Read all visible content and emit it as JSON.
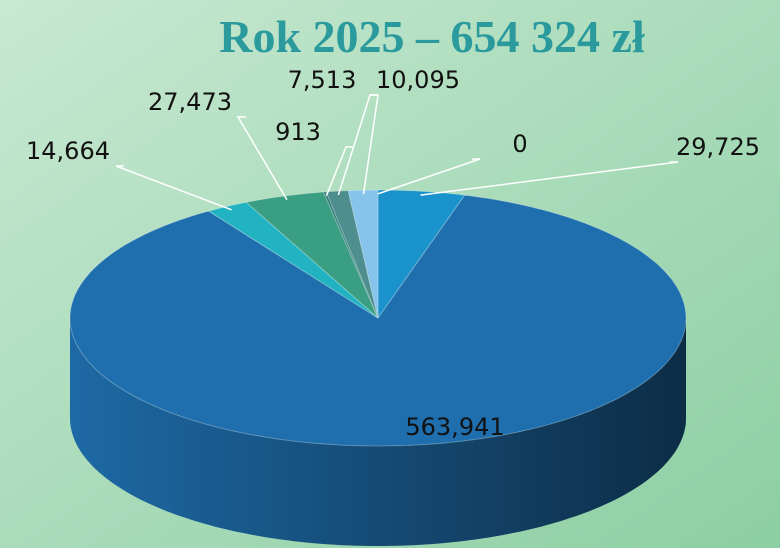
{
  "chart_data": {
    "type": "pie3d",
    "title": "Rok 2025 – 654 324 zł",
    "values": [
      29725,
      563941,
      14664,
      27473,
      913,
      7513,
      10095,
      0
    ],
    "value_labels": [
      "29,725",
      "563,941",
      "14,664",
      "27,473",
      "913",
      "7,513",
      "10,095",
      "0"
    ],
    "colors": [
      "#1a93cc",
      "#1f6fae",
      "#22b3c2",
      "#3a9e83",
      "#2f7a7a",
      "#4f8e8e",
      "#86c4ec",
      "#1a93cc"
    ]
  }
}
